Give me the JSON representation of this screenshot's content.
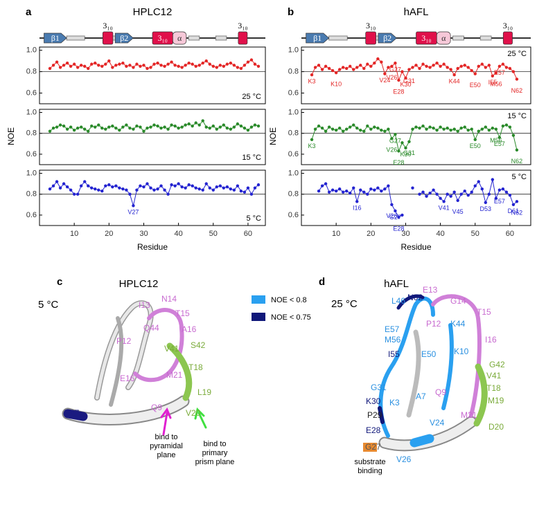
{
  "panel_a": {
    "label": "a",
    "title": "HPLC12",
    "x_label": "Residue",
    "y_label": "NOE",
    "topology": [
      "β1",
      "3₁₀",
      "β2",
      "3₁₀",
      "α",
      "3₁₀"
    ]
  },
  "panel_b": {
    "label": "b",
    "title": "hAFL",
    "x_label": "Residue",
    "y_label": "NOE",
    "topology": [
      "β1",
      "3₁₀",
      "β2",
      "3₁₀",
      "α",
      "3₁₀"
    ]
  },
  "chart_data": [
    {
      "type": "line",
      "color": "#e32626",
      "temperature": "25 °C",
      "label_position": "lower right",
      "hline": 0.8,
      "xlim": [
        0,
        65
      ],
      "ylim": [
        0.5,
        1.03
      ],
      "yticks": [
        0.6,
        0.8,
        {
          "value": 1,
          "label": "1.0"
        }
      ],
      "x": [
        3,
        4,
        5,
        6,
        7,
        8,
        9,
        10,
        11,
        12,
        13,
        14,
        15,
        16,
        17,
        18,
        19,
        20,
        21,
        22,
        23,
        24,
        25,
        26,
        27,
        28,
        29,
        30,
        31,
        32,
        33,
        34,
        35,
        36,
        37,
        38,
        39,
        40,
        41,
        42,
        43,
        44,
        45,
        46,
        47,
        48,
        49,
        50,
        51,
        52,
        53,
        54,
        55,
        56,
        57,
        58,
        59,
        60,
        61,
        62,
        63
      ],
      "values": [
        0.83,
        0.86,
        0.89,
        0.84,
        0.86,
        0.88,
        0.85,
        0.87,
        0.84,
        0.86,
        0.85,
        0.83,
        0.87,
        0.88,
        0.86,
        0.85,
        0.87,
        0.9,
        0.84,
        0.86,
        0.87,
        0.88,
        0.85,
        0.86,
        0.84,
        0.87,
        0.85,
        0.86,
        0.83,
        0.84,
        0.87,
        0.88,
        0.86,
        0.85,
        0.87,
        0.89,
        0.86,
        0.85,
        0.84,
        0.86,
        0.88,
        0.87,
        0.85,
        0.86,
        0.88,
        0.9,
        0.87,
        0.85,
        0.84,
        0.86,
        0.85,
        0.87,
        0.88,
        0.86,
        0.84,
        0.83,
        0.86,
        0.89,
        0.91,
        0.87,
        0.85
      ],
      "annotations": []
    },
    {
      "type": "line",
      "color": "#2a8a2a",
      "temperature": "15 °C",
      "label_position": "lower right",
      "hline": 0.8,
      "xlim": [
        0,
        65
      ],
      "ylim": [
        0.5,
        1.03
      ],
      "yticks": [
        0.6,
        0.8,
        {
          "value": 1,
          "label": "1.0"
        }
      ],
      "x": [
        3,
        4,
        5,
        6,
        7,
        8,
        9,
        10,
        11,
        12,
        13,
        14,
        15,
        16,
        17,
        18,
        19,
        20,
        21,
        22,
        23,
        24,
        25,
        26,
        27,
        28,
        29,
        30,
        31,
        32,
        33,
        34,
        35,
        36,
        37,
        38,
        39,
        40,
        41,
        42,
        43,
        44,
        45,
        46,
        47,
        48,
        49,
        50,
        51,
        52,
        53,
        54,
        55,
        56,
        57,
        58,
        59,
        60,
        61,
        62,
        63
      ],
      "values": [
        0.82,
        0.85,
        0.86,
        0.88,
        0.87,
        0.84,
        0.86,
        0.83,
        0.85,
        0.86,
        0.84,
        0.82,
        0.87,
        0.86,
        0.88,
        0.85,
        0.84,
        0.86,
        0.87,
        0.85,
        0.83,
        0.86,
        0.88,
        0.85,
        0.84,
        0.87,
        0.86,
        0.82,
        0.85,
        0.86,
        0.88,
        0.87,
        0.85,
        0.86,
        0.84,
        0.88,
        0.87,
        0.85,
        0.86,
        0.88,
        0.89,
        0.87,
        0.9,
        0.88,
        0.92,
        0.86,
        0.85,
        0.87,
        0.84,
        0.86,
        0.88,
        0.85,
        0.84,
        0.86,
        0.89,
        0.87,
        0.85,
        0.83,
        0.86,
        0.88,
        0.87
      ],
      "annotations": []
    },
    {
      "type": "line",
      "color": "#2323d0",
      "temperature": "5 °C",
      "label_position": "lower right",
      "hline": 0.8,
      "xlim": [
        0,
        65
      ],
      "ylim": [
        0.5,
        1.03
      ],
      "yticks": [
        0.6,
        0.8,
        {
          "value": 1,
          "label": "1.0"
        }
      ],
      "xticks": [
        10,
        20,
        30,
        40,
        50,
        60
      ],
      "x": [
        3,
        4,
        5,
        6,
        7,
        8,
        9,
        10,
        11,
        12,
        13,
        14,
        15,
        16,
        17,
        18,
        19,
        20,
        21,
        22,
        23,
        24,
        25,
        26,
        27,
        28,
        29,
        30,
        31,
        32,
        33,
        34,
        35,
        36,
        37,
        38,
        39,
        40,
        41,
        42,
        43,
        44,
        45,
        46,
        47,
        48,
        49,
        50,
        51,
        52,
        53,
        54,
        55,
        56,
        57,
        58,
        59,
        60,
        61,
        62,
        63
      ],
      "values": [
        0.85,
        0.88,
        0.92,
        0.86,
        0.9,
        0.87,
        0.84,
        0.8,
        0.8,
        0.88,
        0.92,
        0.88,
        0.86,
        0.85,
        0.84,
        0.83,
        0.88,
        0.89,
        0.87,
        0.88,
        0.86,
        0.85,
        0.84,
        0.8,
        0.69,
        0.84,
        0.88,
        0.87,
        0.9,
        0.86,
        0.84,
        0.85,
        0.88,
        0.84,
        0.8,
        0.89,
        0.88,
        0.9,
        0.87,
        0.86,
        0.89,
        0.88,
        0.86,
        0.85,
        0.84,
        0.9,
        0.86,
        0.84,
        0.87,
        0.88,
        0.86,
        0.87,
        0.85,
        0.84,
        0.88,
        0.83,
        0.82,
        0.86,
        0.8,
        0.86,
        0.89
      ],
      "annotations": [
        {
          "text": "V27",
          "x": 27
        }
      ]
    },
    {
      "type": "line",
      "color": "#e32626",
      "temperature": "25 °C",
      "label_position": "upper right",
      "hline": 0.8,
      "xlim": [
        0,
        66
      ],
      "ylim": [
        0.5,
        1.03
      ],
      "yticks": [
        0.6,
        0.8,
        {
          "value": 1,
          "label": "1.0"
        }
      ],
      "x": [
        3,
        4,
        5,
        6,
        7,
        8,
        9,
        10,
        11,
        12,
        13,
        14,
        15,
        16,
        17,
        18,
        19,
        20,
        21,
        22,
        23,
        24,
        25,
        26,
        27,
        28,
        29,
        30,
        31,
        32,
        33,
        34,
        35,
        36,
        37,
        38,
        39,
        40,
        41,
        42,
        43,
        44,
        45,
        46,
        47,
        48,
        49,
        50,
        51,
        52,
        53,
        54,
        55,
        56,
        57,
        58,
        59,
        60,
        61,
        62
      ],
      "values": [
        0.77,
        0.84,
        0.86,
        0.82,
        0.85,
        0.83,
        0.81,
        0.79,
        0.82,
        0.84,
        0.83,
        0.85,
        0.82,
        0.84,
        0.86,
        0.83,
        0.87,
        0.85,
        0.88,
        0.92,
        0.89,
        0.78,
        0.84,
        0.85,
        0.88,
        0.72,
        0.8,
        0.74,
        0.82,
        0.84,
        0.86,
        0.83,
        0.87,
        0.85,
        0.84,
        0.86,
        0.88,
        0.85,
        0.87,
        0.84,
        0.82,
        0.77,
        0.83,
        0.85,
        0.86,
        0.84,
        0.81,
        0.78,
        0.85,
        0.87,
        0.84,
        0.86,
        0.76,
        0.79,
        0.85,
        0.87,
        0.84,
        0.83,
        0.8,
        0.73
      ],
      "annotations": [
        {
          "text": "K3",
          "x": 3
        },
        {
          "text": "K10",
          "x": 10
        },
        {
          "text": "V24",
          "x": 24
        },
        {
          "text": "V26",
          "x": 26
        },
        {
          "text": "G27",
          "x": 27
        },
        {
          "text": "E28",
          "x": 28
        },
        {
          "text": "K30",
          "x": 30
        },
        {
          "text": "G31",
          "x": 31
        },
        {
          "text": "K44",
          "x": 44
        },
        {
          "text": "E50",
          "x": 50
        },
        {
          "text": "I55",
          "x": 55
        },
        {
          "text": "M56",
          "x": 56
        },
        {
          "text": "E57",
          "x": 57
        },
        {
          "text": "N62",
          "x": 62
        }
      ]
    },
    {
      "type": "line",
      "color": "#2a8a2a",
      "temperature": "15 °C",
      "label_position": "upper right",
      "hline": 0.8,
      "xlim": [
        0,
        66
      ],
      "ylim": [
        0.5,
        1.03
      ],
      "yticks": [
        0.6,
        0.8,
        {
          "value": 1,
          "label": "1.0"
        }
      ],
      "x": [
        3,
        4,
        5,
        6,
        7,
        8,
        9,
        10,
        11,
        12,
        13,
        14,
        15,
        16,
        17,
        18,
        19,
        20,
        21,
        22,
        23,
        24,
        25,
        26,
        27,
        28,
        29,
        30,
        31,
        32,
        33,
        34,
        35,
        36,
        37,
        38,
        39,
        40,
        41,
        42,
        43,
        44,
        45,
        46,
        47,
        48,
        49,
        50,
        51,
        52,
        53,
        54,
        55,
        56,
        57,
        58,
        59,
        60,
        61,
        62
      ],
      "values": [
        0.74,
        0.84,
        0.87,
        0.85,
        0.82,
        0.86,
        0.84,
        0.83,
        0.85,
        0.82,
        0.84,
        0.86,
        0.88,
        0.85,
        0.83,
        0.82,
        0.87,
        0.84,
        0.86,
        0.85,
        0.83,
        0.82,
        0.84,
        0.75,
        0.79,
        0.63,
        0.71,
        0.66,
        0.72,
        0.84,
        0.86,
        0.85,
        0.87,
        0.84,
        0.86,
        0.85,
        0.83,
        0.86,
        0.84,
        0.85,
        0.83,
        0.84,
        0.82,
        0.85,
        0.86,
        0.83,
        0.84,
        0.74,
        0.82,
        0.84,
        0.86,
        0.83,
        0.85,
        0.84,
        0.76,
        0.87,
        0.88,
        0.86,
        0.78,
        0.64
      ],
      "annotations": [
        {
          "text": "K3",
          "x": 3
        },
        {
          "text": "V26",
          "x": 26
        },
        {
          "text": "G27",
          "x": 27
        },
        {
          "text": "E28",
          "x": 28
        },
        {
          "text": "K30",
          "x": 30
        },
        {
          "text": "G31",
          "x": 31
        },
        {
          "text": "E50",
          "x": 50
        },
        {
          "text": "M56",
          "x": 56
        },
        {
          "text": "E57",
          "x": 57
        },
        {
          "text": "N62",
          "x": 62
        }
      ]
    },
    {
      "type": "line",
      "color": "#2323d0",
      "temperature": "5 °C",
      "label_position": "upper right",
      "hline": 0.8,
      "xlim": [
        0,
        66
      ],
      "ylim": [
        0.5,
        1.03
      ],
      "yticks": [
        0.6,
        0.8,
        {
          "value": 1,
          "label": "1.0"
        }
      ],
      "xticks": [
        10,
        20,
        30,
        40,
        50,
        60
      ],
      "x": [
        3,
        4,
        5,
        6,
        7,
        8,
        9,
        10,
        11,
        12,
        13,
        14,
        15,
        16,
        17,
        18,
        19,
        20,
        21,
        22,
        23,
        24,
        25,
        26,
        27,
        28,
        29,
        30,
        31,
        32,
        33,
        34,
        35,
        36,
        37,
        38,
        39,
        40,
        41,
        42,
        43,
        44,
        45,
        46,
        47,
        48,
        49,
        50,
        51,
        52,
        53,
        54,
        55,
        56,
        57,
        58,
        59,
        60,
        61,
        62
      ],
      "values": [
        null,
        null,
        0.83,
        0.88,
        0.9,
        0.82,
        0.84,
        0.83,
        0.85,
        0.82,
        0.83,
        0.81,
        0.86,
        0.73,
        0.84,
        0.82,
        0.8,
        0.85,
        0.84,
        0.86,
        0.83,
        0.85,
        0.88,
        0.7,
        0.64,
        0.58,
        0.6,
        null,
        null,
        0.86,
        null,
        0.8,
        0.82,
        0.78,
        0.81,
        0.84,
        0.8,
        0.76,
        0.73,
        0.8,
        0.78,
        0.82,
        0.74,
        0.8,
        0.83,
        0.79,
        0.82,
        0.88,
        0.92,
        0.85,
        0.72,
        0.8,
        0.94,
        0.76,
        0.84,
        0.85,
        0.82,
        0.79,
        0.7,
        0.73
      ],
      "annotations": [
        {
          "text": "I16",
          "x": 16
        },
        {
          "text": "V26",
          "x": 26
        },
        {
          "text": "G27",
          "x": 27
        },
        {
          "text": "E28",
          "x": 28
        },
        {
          "text": "V41",
          "x": 41
        },
        {
          "text": "V45",
          "x": 45
        },
        {
          "text": "D53",
          "x": 53
        },
        {
          "text": "E57",
          "x": 57
        },
        {
          "text": "D61",
          "x": 61
        },
        {
          "text": "N62",
          "x": 62
        }
      ]
    }
  ],
  "panel_c": {
    "label": "c",
    "title": "HPLC12",
    "temperature": "5 °C",
    "residue_labels": [
      {
        "text": "I13",
        "color": "#c86ad0"
      },
      {
        "text": "N14",
        "color": "#c86ad0"
      },
      {
        "text": "T15",
        "color": "#c86ad0"
      },
      {
        "text": "Q44",
        "color": "#c86ad0"
      },
      {
        "text": "A16",
        "color": "#c86ad0"
      },
      {
        "text": "P12",
        "color": "#c86ad0"
      },
      {
        "text": "V41",
        "color": "#7aab3a"
      },
      {
        "text": "S42",
        "color": "#7aab3a"
      },
      {
        "text": "T18",
        "color": "#7aab3a"
      },
      {
        "text": "E16",
        "color": "#c86ad0"
      },
      {
        "text": "M21",
        "color": "#c86ad0"
      },
      {
        "text": "L19",
        "color": "#7aab3a"
      },
      {
        "text": "Q9",
        "color": "#c86ad0"
      },
      {
        "text": "V20",
        "color": "#7aab3a"
      },
      {
        "text": "V27",
        "color": "#1a1a80"
      }
    ],
    "notes": [
      [
        "bind to",
        "pyramidal",
        "plane"
      ],
      [
        "bind to",
        "primary",
        "prism plane"
      ]
    ]
  },
  "panel_d": {
    "label": "d",
    "title": "hAFL",
    "temperature": "25 °C",
    "legend": [
      {
        "name": "NOE < 0.8",
        "color": "#2aa0f0"
      },
      {
        "name": "NOE < 0.75",
        "color": "#10187a"
      }
    ],
    "residue_labels": [
      {
        "text": "E13",
        "color": "#c86ad0"
      },
      {
        "text": "N62",
        "color": "#10187a"
      },
      {
        "text": "G14",
        "color": "#c86ad0"
      },
      {
        "text": "L46",
        "color": "#2a90e0"
      },
      {
        "text": "T15",
        "color": "#c86ad0"
      },
      {
        "text": "P12",
        "color": "#c86ad0"
      },
      {
        "text": "K44",
        "color": "#2a90e0"
      },
      {
        "text": "I16",
        "color": "#c86ad0"
      },
      {
        "text": "E57",
        "color": "#2a90e0"
      },
      {
        "text": "M56",
        "color": "#2a90e0"
      },
      {
        "text": "G42",
        "color": "#7aab3a"
      },
      {
        "text": "I55",
        "color": "#10187a"
      },
      {
        "text": "E50",
        "color": "#2a90e0"
      },
      {
        "text": "K10",
        "color": "#2a90e0"
      },
      {
        "text": "V41",
        "color": "#7aab3a"
      },
      {
        "text": "G31",
        "color": "#2a90e0"
      },
      {
        "text": "T18",
        "color": "#7aab3a"
      },
      {
        "text": "K30",
        "color": "#10187a"
      },
      {
        "text": "M19",
        "color": "#7aab3a"
      },
      {
        "text": "P29",
        "color": "#222222"
      },
      {
        "text": "K3",
        "color": "#2a90e0"
      },
      {
        "text": "A7",
        "color": "#2a90e0"
      },
      {
        "text": "Q9",
        "color": "#c86ad0"
      },
      {
        "text": "M21",
        "color": "#c86ad0"
      },
      {
        "text": "D20",
        "color": "#7aab3a"
      },
      {
        "text": "E28",
        "color": "#10187a"
      },
      {
        "text": "V24",
        "color": "#2a90e0"
      },
      {
        "text": "G27",
        "color": "#555555"
      },
      {
        "text": "V26",
        "color": "#2a90e0"
      }
    ],
    "note": [
      "substrate",
      "binding"
    ]
  }
}
